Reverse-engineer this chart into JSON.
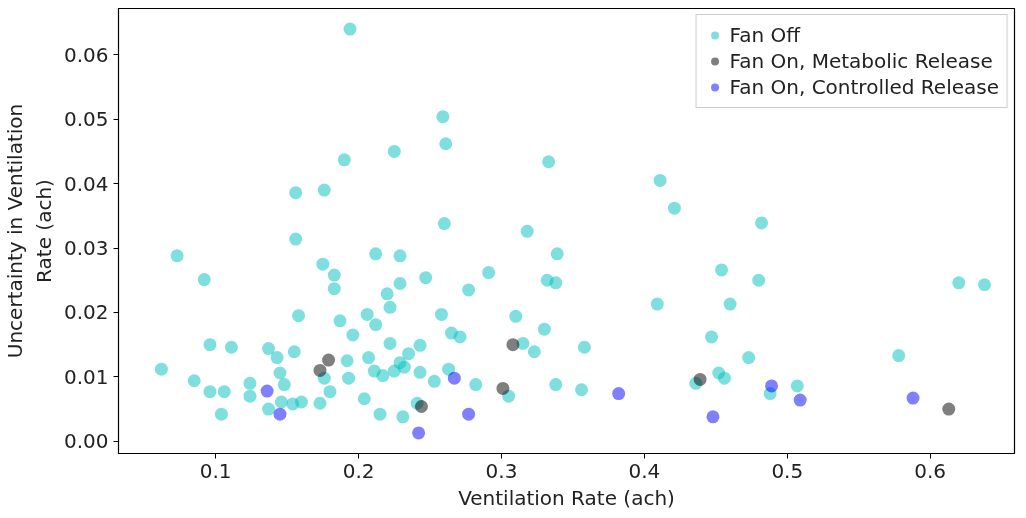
{
  "chart_data": {
    "type": "scatter",
    "xlabel": "Ventilation Rate (ach)",
    "ylabel": "Uncertainty in Ventilation\nRate (ach)",
    "xlim": [
      0.032,
      0.659
    ],
    "ylim": [
      -0.0019,
      0.0672
    ],
    "xticks": [
      0.1,
      0.2,
      0.3,
      0.4,
      0.5,
      0.6
    ],
    "yticks": [
      {
        "value": 0,
        "label": "0.00"
      },
      0.01,
      0.02,
      0.03,
      0.04,
      0.05,
      0.06
    ],
    "grid": false,
    "legend": "top right",
    "marker": "circle",
    "series": [
      {
        "name": "Fan Off",
        "color": "#00bfbf",
        "x": [
          0.062,
          0.073,
          0.092,
          0.085,
          0.096,
          0.096,
          0.104,
          0.106,
          0.111,
          0.124,
          0.124,
          0.137,
          0.143,
          0.137,
          0.145,
          0.148,
          0.146,
          0.154,
          0.155,
          0.156,
          0.156,
          0.158,
          0.16,
          0.173,
          0.175,
          0.176,
          0.183,
          0.183,
          0.176,
          0.18,
          0.187,
          0.19,
          0.192,
          0.193,
          0.194,
          0.196,
          0.204,
          0.206,
          0.207,
          0.212,
          0.211,
          0.212,
          0.215,
          0.217,
          0.22,
          0.222,
          0.222,
          0.225,
          0.225,
          0.229,
          0.229,
          0.231,
          0.232,
          0.229,
          0.235,
          0.243,
          0.243,
          0.241,
          0.247,
          0.253,
          0.258,
          0.26,
          0.259,
          0.261,
          0.263,
          0.265,
          0.271,
          0.277,
          0.282,
          0.291,
          0.305,
          0.31,
          0.315,
          0.318,
          0.323,
          0.33,
          0.332,
          0.333,
          0.338,
          0.339,
          0.338,
          0.356,
          0.358,
          0.409,
          0.411,
          0.421,
          0.436,
          0.447,
          0.452,
          0.456,
          0.454,
          0.46,
          0.473,
          0.48,
          0.482,
          0.488,
          0.507,
          0.578,
          0.62,
          0.638
        ],
        "values": [
          0.0112,
          0.0288,
          0.0251,
          0.0094,
          0.015,
          0.0077,
          0.0042,
          0.0077,
          0.0146,
          0.009,
          0.007,
          0.0144,
          0.013,
          0.005,
          0.0106,
          0.0088,
          0.0061,
          0.0058,
          0.0139,
          0.0314,
          0.0386,
          0.0195,
          0.0061,
          0.0059,
          0.0275,
          0.039,
          0.0258,
          0.0237,
          0.0098,
          0.0077,
          0.0187,
          0.0437,
          0.0125,
          0.0098,
          0.064,
          0.0165,
          0.0066,
          0.0197,
          0.013,
          0.0181,
          0.0109,
          0.0291,
          0.0042,
          0.0102,
          0.0229,
          0.0208,
          0.0152,
          0.045,
          0.0109,
          0.0288,
          0.0245,
          0.0038,
          0.0115,
          0.0122,
          0.0136,
          0.0107,
          0.0149,
          0.0059,
          0.0254,
          0.0093,
          0.0197,
          0.0338,
          0.0504,
          0.0462,
          0.0112,
          0.0168,
          0.0162,
          0.0235,
          0.0088,
          0.0262,
          0.007,
          0.0194,
          0.0152,
          0.0326,
          0.0139,
          0.0174,
          0.025,
          0.0434,
          0.0246,
          0.0291,
          0.0088,
          0.008,
          0.0146,
          0.0213,
          0.0405,
          0.0362,
          0.009,
          0.0162,
          0.0106,
          0.0098,
          0.0266,
          0.0213,
          0.013,
          0.025,
          0.0339,
          0.0074,
          0.0086,
          0.0133,
          0.0246,
          0.0243
        ]
      },
      {
        "name": "Fan On, Metabolic Release",
        "color": "#000000",
        "x": [
          0.173,
          0.179,
          0.244,
          0.301,
          0.308,
          0.439,
          0.613
        ],
        "values": [
          0.011,
          0.0126,
          0.0054,
          0.0082,
          0.015,
          0.0096,
          0.005
        ]
      },
      {
        "name": "Fan On, Controlled Release",
        "color": "#0000ff",
        "x": [
          0.136,
          0.145,
          0.242,
          0.267,
          0.277,
          0.382,
          0.448,
          0.489,
          0.509,
          0.588
        ],
        "values": [
          0.0078,
          0.0042,
          0.0013,
          0.0098,
          0.0042,
          0.0074,
          0.0038,
          0.0086,
          0.0064,
          0.0067
        ]
      }
    ]
  }
}
